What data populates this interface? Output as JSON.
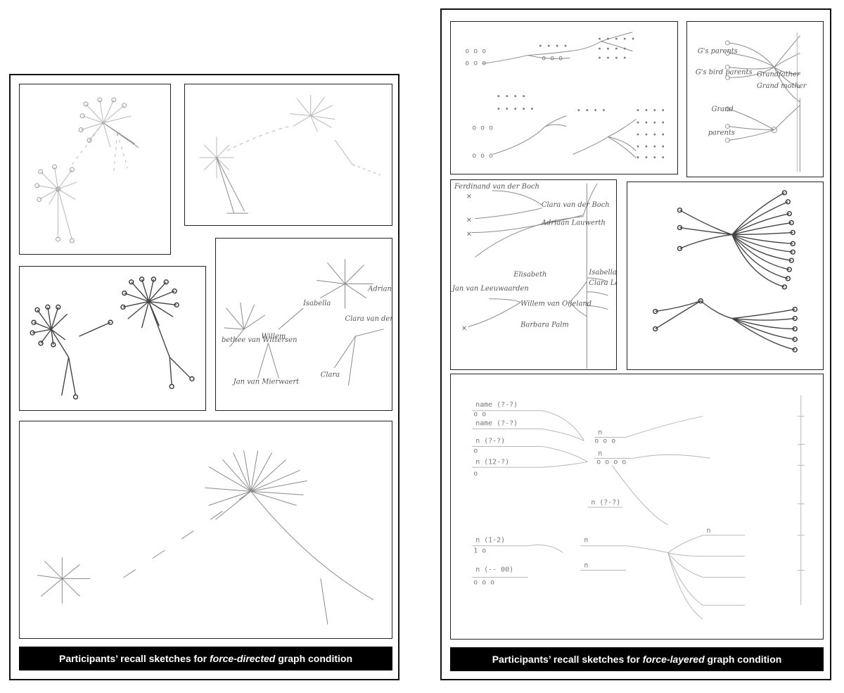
{
  "left_panel": {
    "caption_prefix": "Participants’ recall sketches for ",
    "caption_em": "force-directed",
    "caption_suffix": " graph condition",
    "sketches": {
      "s3": {
        "labels": [
          "Isabella",
          "Willem",
          "bethee van Wittersen",
          "Jan van Mierwaert",
          "Clara van der Boch",
          "Adrian",
          "Clara"
        ]
      }
    }
  },
  "right_panel": {
    "caption_prefix": "Participants’ recall sketches for ",
    "caption_em": "force-layered",
    "caption_suffix": " graph condition",
    "sketches": {
      "s2": {
        "labels": [
          "G's parents",
          "G's bird parents",
          "Grandfather",
          "Grand mother",
          "Grand",
          "parents"
        ]
      },
      "s3": {
        "labels": [
          "Ferdinand van der Boch",
          "Clara van der Boch",
          "Adriaan Lauwerth",
          "Elisabeth",
          "Jan van Leeuwaarden",
          "Willem van Oijeland",
          "Barbara Palm",
          "Isabella",
          "Clara Lauwerth"
        ]
      },
      "s5": {
        "labels": [
          "name (?-?)",
          "name (?-?)",
          "n (?-?)",
          "n (12-?)",
          "n",
          "n",
          "n (?-?)",
          "n (1-2)",
          "n (-- 00)",
          "n",
          "n",
          "n"
        ]
      }
    }
  }
}
